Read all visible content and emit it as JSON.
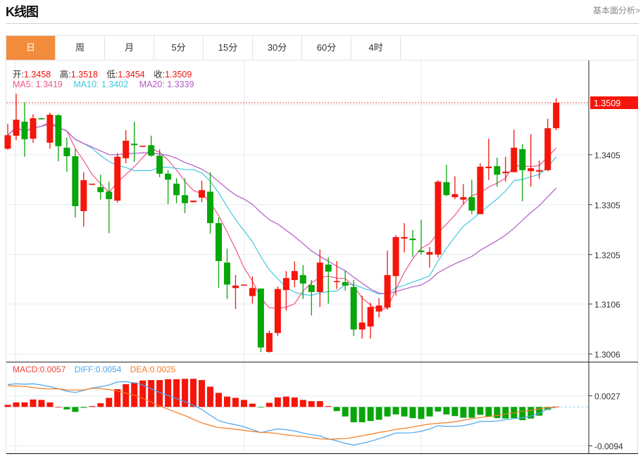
{
  "header": {
    "title": "K线图",
    "more_link": "基本面分析>"
  },
  "tabs": [
    {
      "label": "日",
      "active": true
    },
    {
      "label": "周"
    },
    {
      "label": "月"
    },
    {
      "label": "5分"
    },
    {
      "label": "15分"
    },
    {
      "label": "30分"
    },
    {
      "label": "60分"
    },
    {
      "label": "4时"
    }
  ],
  "ohlc_info": {
    "open_label": "开:",
    "open": "1.3458",
    "high_label": "高:",
    "high": "1.3518",
    "low_label": "低:",
    "low": "1.3454",
    "close_label": "收:",
    "close": "1.3509"
  },
  "ma_info": {
    "ma5": "MA5: 1.3419",
    "ma10": "MA10: 1.3402",
    "ma20": "MA20: 1.3339"
  },
  "macd_info": {
    "macd": "MACD:0.0057",
    "diff": "DIFF:0.0054",
    "dea": "DEA:0.0025"
  },
  "colors": {
    "up": "#f5150a",
    "down": "#08a60a",
    "ma5": "#f0558a",
    "ma10": "#3fc8e0",
    "ma20": "#b25ac8",
    "diff": "#4ba5f0",
    "dea": "#f47a1f",
    "accent": "#f28c3c"
  },
  "chart_data": [
    {
      "type": "candlestick",
      "price_ticks": [
        "1.3006",
        "1.3106",
        "1.3205",
        "1.3305",
        "1.3405"
      ],
      "last_price": "1.3509",
      "ylim": [
        1.3006,
        1.3509
      ],
      "moving_averages": [
        5,
        10,
        20
      ],
      "ohlc": [
        [
          1.3417,
          1.3467,
          1.3415,
          1.3444
        ],
        [
          1.3443,
          1.3527,
          1.3434,
          1.3475
        ],
        [
          1.3471,
          1.351,
          1.3401,
          1.3436
        ],
        [
          1.3437,
          1.3486,
          1.3429,
          1.3478
        ],
        [
          1.3478,
          1.3479,
          1.3475,
          1.3477
        ],
        [
          1.3429,
          1.3489,
          1.3417,
          1.3485
        ],
        [
          1.3484,
          1.3486,
          1.3392,
          1.3422
        ],
        [
          1.3419,
          1.3439,
          1.3371,
          1.3402
        ],
        [
          1.3402,
          1.3416,
          1.3279,
          1.3302
        ],
        [
          1.3292,
          1.337,
          1.3261,
          1.3354
        ],
        [
          1.3346,
          1.3347,
          1.3344,
          1.3347
        ],
        [
          1.334,
          1.3365,
          1.3315,
          1.333
        ],
        [
          1.3331,
          1.3351,
          1.3248,
          1.3316
        ],
        [
          1.3313,
          1.3408,
          1.3309,
          1.3401
        ],
        [
          1.3398,
          1.3454,
          1.3388,
          1.3433
        ],
        [
          1.3427,
          1.3471,
          1.3391,
          1.3424
        ],
        [
          1.3422,
          1.3423,
          1.342,
          1.3423
        ],
        [
          1.3424,
          1.3443,
          1.3401,
          1.3403
        ],
        [
          1.3403,
          1.3416,
          1.336,
          1.3367
        ],
        [
          1.3367,
          1.3374,
          1.3306,
          1.3355
        ],
        [
          1.3347,
          1.3358,
          1.3308,
          1.3324
        ],
        [
          1.3324,
          1.3358,
          1.3288,
          1.3308
        ],
        [
          1.331,
          1.3312,
          1.3309,
          1.3313
        ],
        [
          1.3319,
          1.3353,
          1.331,
          1.3334
        ],
        [
          1.3331,
          1.337,
          1.3247,
          1.3268
        ],
        [
          1.3268,
          1.3279,
          1.3138,
          1.3192
        ],
        [
          1.3189,
          1.3217,
          1.3116,
          1.3145
        ],
        [
          1.3138,
          1.3164,
          1.3096,
          1.3143
        ],
        [
          1.3144,
          1.3145,
          1.3143,
          1.3145
        ],
        [
          1.3122,
          1.3161,
          1.3107,
          1.3138
        ],
        [
          1.3137,
          1.3137,
          1.301,
          1.3019
        ],
        [
          1.301,
          1.3053,
          1.3009,
          1.3048
        ],
        [
          1.3048,
          1.3141,
          1.3042,
          1.3136
        ],
        [
          1.3134,
          1.3172,
          1.3093,
          1.3158
        ],
        [
          1.3154,
          1.3191,
          1.314,
          1.3172
        ],
        [
          1.3164,
          1.3184,
          1.3116,
          1.3147
        ],
        [
          1.3144,
          1.3154,
          1.3083,
          1.313
        ],
        [
          1.313,
          1.3215,
          1.31,
          1.3189
        ],
        [
          1.3185,
          1.3199,
          1.3107,
          1.3171
        ],
        [
          1.315,
          1.3192,
          1.3136,
          1.3152
        ],
        [
          1.315,
          1.3173,
          1.3133,
          1.3143
        ],
        [
          1.314,
          1.3154,
          1.3042,
          1.3055
        ],
        [
          1.3055,
          1.3123,
          1.3037,
          1.3069
        ],
        [
          1.3061,
          1.3109,
          1.3037,
          1.31
        ],
        [
          1.3091,
          1.3118,
          1.3079,
          1.3103
        ],
        [
          1.3099,
          1.3213,
          1.3095,
          1.3164
        ],
        [
          1.3162,
          1.3244,
          1.3123,
          1.324
        ],
        [
          1.3237,
          1.3268,
          1.3209,
          1.324
        ],
        [
          1.3237,
          1.3254,
          1.32,
          1.3234
        ],
        [
          1.3213,
          1.3275,
          1.3205,
          1.321
        ],
        [
          1.3205,
          1.322,
          1.3179,
          1.321
        ],
        [
          1.3205,
          1.3354,
          1.3199,
          1.3351
        ],
        [
          1.335,
          1.3385,
          1.3322,
          1.3324
        ],
        [
          1.332,
          1.3362,
          1.3316,
          1.3326
        ],
        [
          1.3315,
          1.3346,
          1.3305,
          1.332
        ],
        [
          1.332,
          1.3355,
          1.3286,
          1.3293
        ],
        [
          1.3286,
          1.3388,
          1.3286,
          1.3381
        ],
        [
          1.3378,
          1.3437,
          1.3354,
          1.3381
        ],
        [
          1.3382,
          1.3399,
          1.3341,
          1.3365
        ],
        [
          1.3368,
          1.3401,
          1.3351,
          1.3371
        ],
        [
          1.337,
          1.3455,
          1.337,
          1.3419
        ],
        [
          1.3416,
          1.3426,
          1.3312,
          1.3374
        ],
        [
          1.3372,
          1.3446,
          1.3341,
          1.3378
        ],
        [
          1.3371,
          1.3393,
          1.3357,
          1.3374
        ],
        [
          1.3374,
          1.3477,
          1.3372,
          1.3458
        ],
        [
          1.3458,
          1.3518,
          1.3454,
          1.3509
        ]
      ]
    },
    {
      "type": "bar+line",
      "ticks": [
        "0.0027",
        "-0.0094"
      ],
      "ylim": [
        -0.0094,
        0.0027
      ],
      "macd_hist": [
        0.0005,
        0.0011,
        0.0011,
        0.0018,
        0.0017,
        0.0011,
        0.0,
        -0.0006,
        -0.0012,
        -0.0002,
        0.0002,
        0.0009,
        0.0022,
        0.0043,
        0.0055,
        0.0059,
        0.0064,
        0.0065,
        0.0065,
        0.0067,
        0.0067,
        0.0068,
        0.0068,
        0.0065,
        0.0049,
        0.0034,
        0.0025,
        0.0022,
        0.0017,
        0.0008,
        -0.0001,
        0.001,
        0.0023,
        0.0025,
        0.0023,
        0.0017,
        0.0014,
        0.0014,
        0.0002,
        -0.001,
        -0.0023,
        -0.0037,
        -0.0037,
        -0.0034,
        -0.0031,
        -0.0023,
        -0.0018,
        -0.0023,
        -0.0027,
        -0.0029,
        -0.0023,
        -0.0011,
        -0.0018,
        -0.0022,
        -0.0026,
        -0.0026,
        -0.0019,
        -0.0024,
        -0.0027,
        -0.0028,
        -0.0027,
        -0.0032,
        -0.0028,
        -0.0021,
        -0.0007,
        0.0001
      ],
      "diff": [
        0.0054,
        0.0056,
        0.0055,
        0.0056,
        0.0053,
        0.0049,
        0.0044,
        0.0038,
        0.0035,
        0.004,
        0.0046,
        0.0049,
        0.0053,
        0.006,
        0.0061,
        0.0058,
        0.0053,
        0.0044,
        0.0035,
        0.0028,
        0.002,
        0.0013,
        0.0004,
        -0.0006,
        -0.002,
        -0.0033,
        -0.0039,
        -0.0043,
        -0.0048,
        -0.0055,
        -0.0062,
        -0.0057,
        -0.0053,
        -0.0055,
        -0.0058,
        -0.0063,
        -0.0067,
        -0.007,
        -0.0077,
        -0.0082,
        -0.0088,
        -0.0092,
        -0.0088,
        -0.0083,
        -0.0077,
        -0.007,
        -0.0063,
        -0.0063,
        -0.0062,
        -0.0059,
        -0.0053,
        -0.0045,
        -0.0047,
        -0.0047,
        -0.0045,
        -0.0041,
        -0.0035,
        -0.0035,
        -0.0034,
        -0.0031,
        -0.0028,
        -0.0026,
        -0.0022,
        -0.0015,
        -0.0005,
        0.0
      ]
    }
  ]
}
